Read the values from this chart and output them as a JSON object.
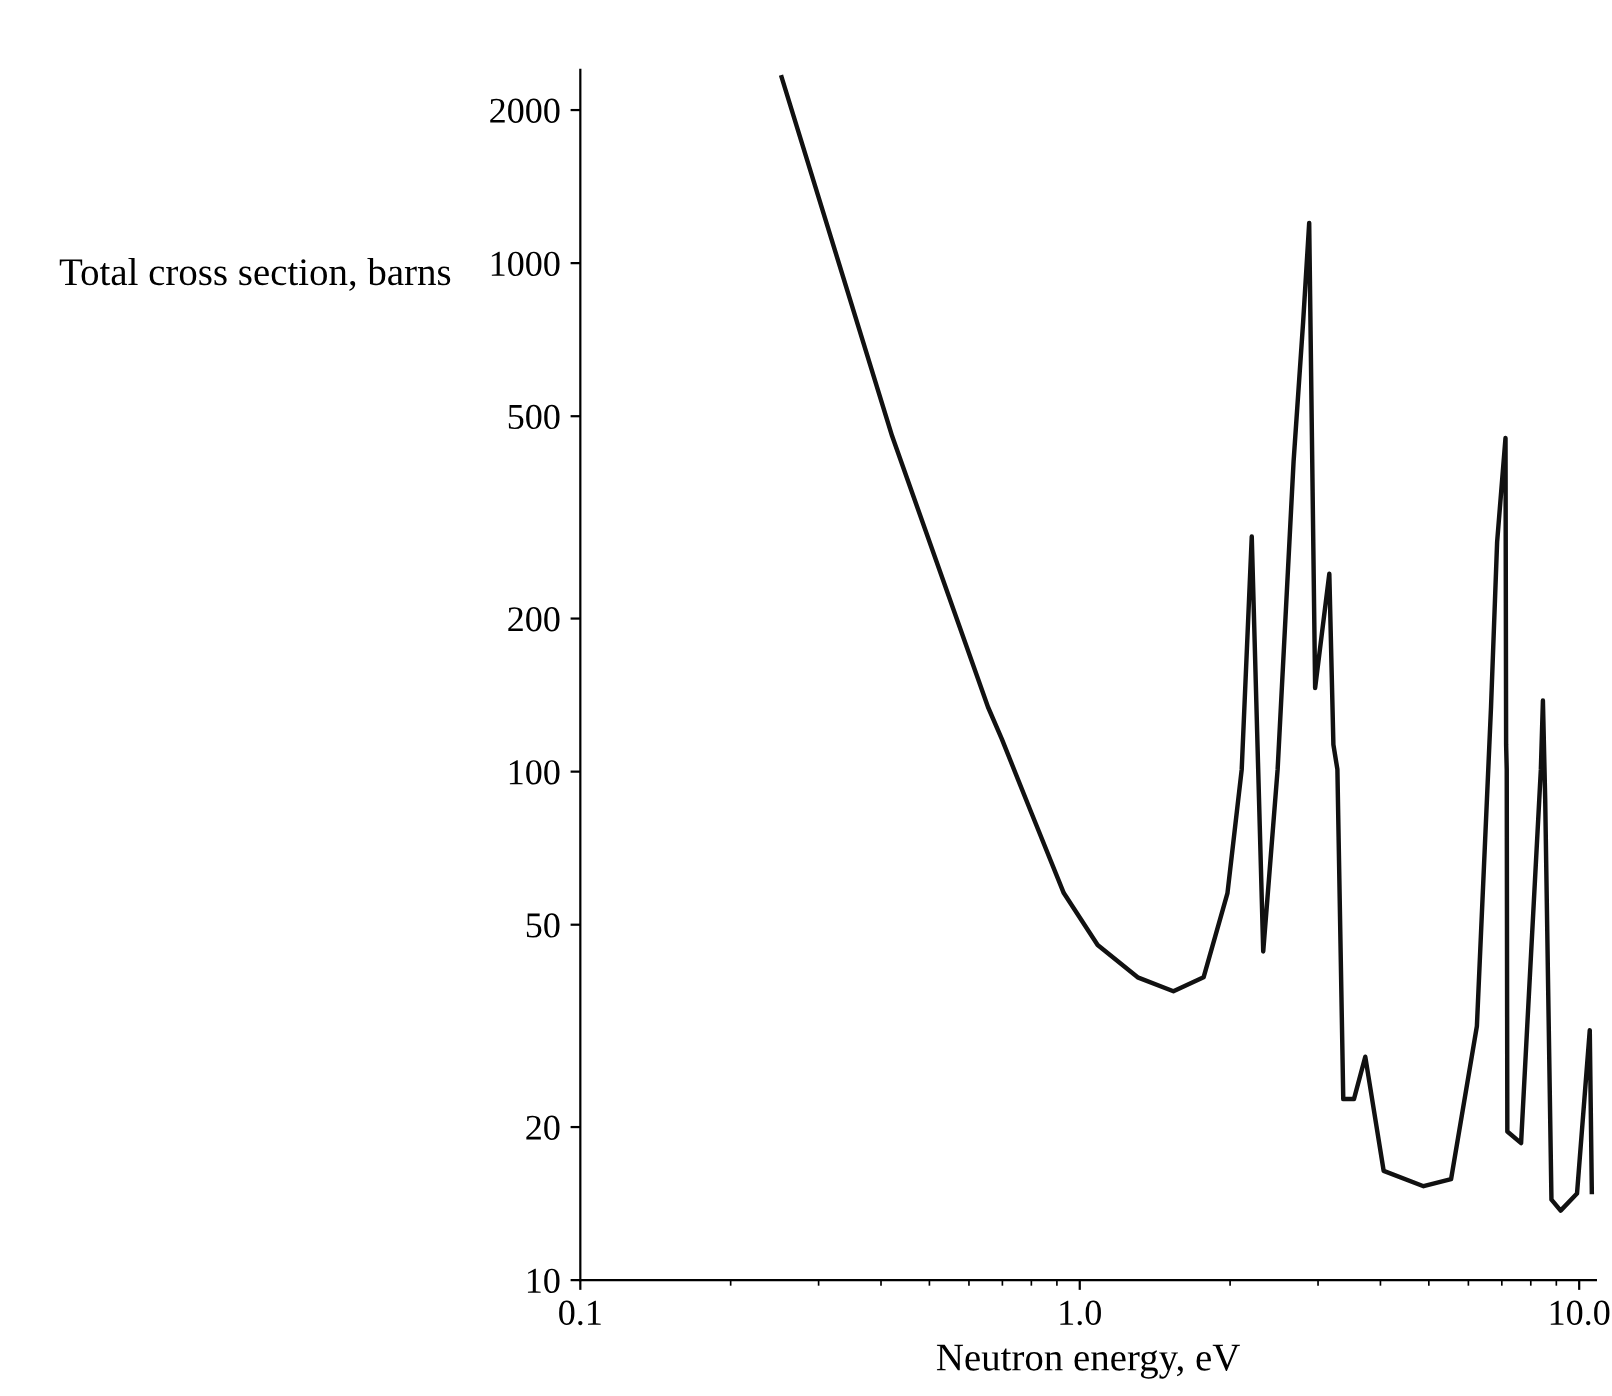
{
  "chart_data": {
    "type": "line",
    "xlabel": "Neutron energy, eV",
    "ylabel": "Total cross section, barns",
    "log": "xy",
    "xlim": [
      0.1,
      10.8
    ],
    "ylim": [
      10,
      2400
    ],
    "xticks": [
      0.1,
      {
        "value": 1,
        "label": "1.0"
      },
      {
        "value": 10,
        "label": "10.0"
      }
    ],
    "yticks": [
      10,
      20,
      50,
      100,
      200,
      500,
      1000,
      2000
    ],
    "grid": false,
    "legend": false,
    "marker": "none",
    "line_style": "solid",
    "series": [
      {
        "color": "#111111",
        "x": [
          0.253,
          0.421,
          0.655,
          0.698,
          0.8,
          0.929,
          1.086,
          1.306,
          1.54,
          1.77,
          1.976,
          2.11,
          2.21,
          2.33,
          2.49,
          2.68,
          2.8,
          2.88,
          2.96,
          3.16,
          3.22,
          3.28,
          3.37,
          3.54,
          3.73,
          4.06,
          4.88,
          5.54,
          6.24,
          6.66,
          6.85,
          7.12,
          7.14,
          7.16,
          7.18,
          7.65,
          7.87,
          8.38,
          8.46,
          8.55,
          8.8,
          9.18,
          9.9,
          10.5,
          10.6
        ],
        "values": [
          2320,
          457,
          134,
          116,
          83,
          57.7,
          45.6,
          39.4,
          37,
          39.4,
          57.7,
          101,
          290,
          44.3,
          101,
          407,
          763,
          1200,
          146,
          245,
          113,
          101,
          22.7,
          22.7,
          27.5,
          16.4,
          15.3,
          15.8,
          31.6,
          134,
          283,
          453,
          113,
          101,
          19.6,
          18.6,
          31.6,
          101,
          138,
          88,
          14.4,
          13.7,
          14.8,
          31,
          14.9
        ]
      }
    ]
  }
}
